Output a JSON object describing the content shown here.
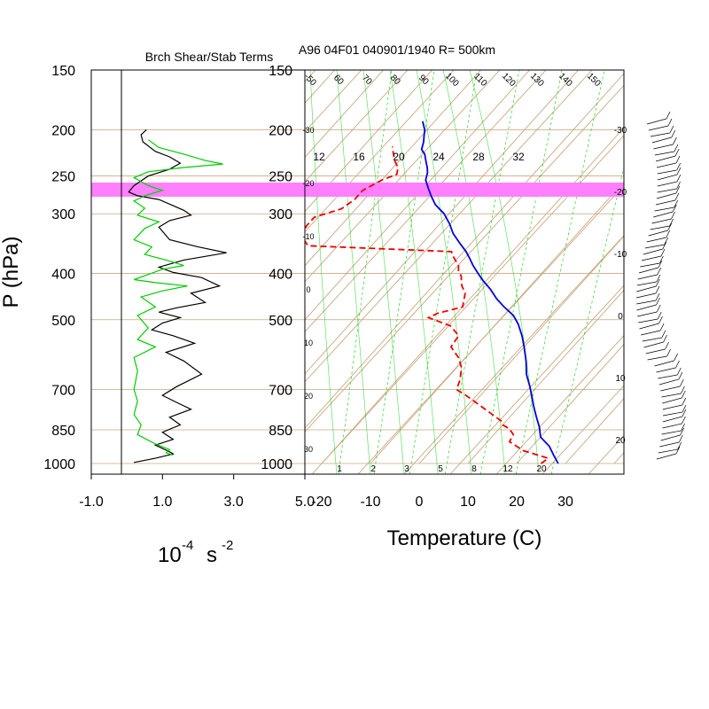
{
  "header": {
    "left_title": "Brch Shear/Stab Terms",
    "right_title": "A96 04F01 040901/1940 R= 500km"
  },
  "axes": {
    "pressure_label": "P (hPa)",
    "temperature_label": "Temperature (C)",
    "units_base": "10",
    "units_exp1": "-4",
    "units_s": "s",
    "units_exp2": "-2"
  },
  "chart_data": [
    {
      "type": "line",
      "name": "shear-stability-profile",
      "xlabel": "10^-4 s^-2",
      "ylabel": "P (hPa)",
      "xlim": [
        -1.0,
        5.0
      ],
      "xticks": [
        "-1.0",
        "1.0",
        "3.0",
        "5.0"
      ],
      "ylim": [
        1000,
        150
      ],
      "yscale": "log",
      "yticks": [
        "150",
        "200",
        "250",
        "300",
        "400",
        "500",
        "700",
        "850",
        "1000"
      ],
      "colors": {
        "black": "#000000",
        "green": "#00cc00",
        "highlight": "#ff80ff"
      },
      "highlight_band": [
        258,
        280
      ],
      "series": [
        {
          "color": "black",
          "points": [
            [
              0.55,
              200
            ],
            [
              0.4,
              205
            ],
            [
              0.45,
              212
            ],
            [
              0.8,
              222
            ],
            [
              1.2,
              228
            ],
            [
              1.5,
              235
            ],
            [
              1.2,
              242
            ],
            [
              0.6,
              250
            ],
            [
              0.2,
              262
            ],
            [
              0.05,
              270
            ],
            [
              0.3,
              275
            ],
            [
              0.9,
              280
            ],
            [
              1.6,
              295
            ],
            [
              1.8,
              302
            ],
            [
              1.2,
              310
            ],
            [
              0.9,
              320
            ],
            [
              1.2,
              340
            ],
            [
              2.0,
              352
            ],
            [
              2.8,
              362
            ],
            [
              1.6,
              375
            ],
            [
              0.9,
              388
            ],
            [
              1.3,
              398
            ],
            [
              2.1,
              408
            ],
            [
              2.6,
              425
            ],
            [
              1.8,
              440
            ],
            [
              2.2,
              460
            ],
            [
              1.4,
              472
            ],
            [
              0.9,
              482
            ],
            [
              1.5,
              495
            ],
            [
              1.0,
              508
            ],
            [
              0.7,
              525
            ],
            [
              1.3,
              540
            ],
            [
              1.9,
              560
            ],
            [
              1.1,
              585
            ],
            [
              1.6,
              610
            ],
            [
              2.1,
              650
            ],
            [
              1.4,
              690
            ],
            [
              1.0,
              720
            ],
            [
              1.4,
              745
            ],
            [
              1.8,
              770
            ],
            [
              1.2,
              800
            ],
            [
              1.5,
              830
            ],
            [
              1.0,
              860
            ],
            [
              1.3,
              890
            ],
            [
              0.8,
              915
            ],
            [
              1.2,
              945
            ],
            [
              1.3,
              955
            ],
            [
              0.8,
              975
            ],
            [
              0.2,
              995
            ]
          ]
        },
        {
          "color": "green",
          "points": [
            [
              0.6,
              210
            ],
            [
              0.9,
              218
            ],
            [
              1.6,
              225
            ],
            [
              2.2,
              232
            ],
            [
              2.7,
              236
            ],
            [
              1.6,
              240
            ],
            [
              0.6,
              245
            ],
            [
              0.2,
              252
            ],
            [
              0.6,
              262
            ],
            [
              1.0,
              268
            ],
            [
              0.5,
              275
            ],
            [
              0.2,
              282
            ],
            [
              0.5,
              292
            ],
            [
              0.3,
              302
            ],
            [
              0.9,
              312
            ],
            [
              0.5,
              322
            ],
            [
              0.2,
              340
            ],
            [
              0.7,
              352
            ],
            [
              0.5,
              365
            ],
            [
              1.1,
              375
            ],
            [
              1.6,
              385
            ],
            [
              1.0,
              392
            ],
            [
              0.6,
              402
            ],
            [
              0.2,
              412
            ],
            [
              0.8,
              418
            ],
            [
              1.7,
              425
            ],
            [
              1.0,
              435
            ],
            [
              0.4,
              448
            ],
            [
              0.8,
              470
            ],
            [
              0.3,
              490
            ],
            [
              0.6,
              520
            ],
            [
              0.3,
              550
            ],
            [
              0.8,
              570
            ],
            [
              0.2,
              600
            ],
            [
              0.3,
              640
            ],
            [
              0.2,
              700
            ],
            [
              0.3,
              740
            ],
            [
              0.2,
              790
            ],
            [
              0.4,
              830
            ],
            [
              0.3,
              870
            ],
            [
              0.8,
              910
            ],
            [
              1.2,
              935
            ],
            [
              1.1,
              950
            ],
            [
              1.3,
              960
            ]
          ]
        }
      ]
    },
    {
      "type": "line",
      "name": "skew-t-sounding",
      "title": "A96 04F01 040901/1940 R= 500km",
      "xlabel": "Temperature (C)",
      "xlim": [
        -20,
        30
      ],
      "xticks": [
        "-20",
        "-10",
        "0",
        "10",
        "20",
        "30"
      ],
      "yscale": "log",
      "ylim": [
        1000,
        150
      ],
      "yticks": [
        "150",
        "200",
        "250",
        "300",
        "400",
        "500",
        "700",
        "850",
        "1000"
      ],
      "colors": {
        "temperature": "#0000dd",
        "dewpoint": "#ee0000",
        "background": "#c8a882",
        "mixing_ratio": "#00cc00"
      },
      "mixing_ratio_labels_top": [
        "12",
        "16",
        "20",
        "24",
        "28",
        "32"
      ],
      "mixing_ratio_labels_bottom": [
        "1",
        "2",
        "3",
        "5",
        "8",
        "12",
        "20"
      ],
      "isotherm_labels_top": [
        "-50",
        "60",
        "70",
        "80",
        "90",
        "100",
        "110",
        "120",
        "130",
        "140",
        "150"
      ],
      "adiabat_labels_right": [
        "-30",
        "-20",
        "-10",
        "0",
        "10",
        "20"
      ],
      "adiabat_labels_left": [
        "-30",
        "-20",
        "-10",
        "0",
        "10",
        "20",
        "30"
      ],
      "series": [
        {
          "name": "temperature",
          "points": [
            [
              28.5,
              1000
            ],
            [
              26,
              960
            ],
            [
              23.5,
              920
            ],
            [
              20,
              880
            ],
            [
              18,
              840
            ],
            [
              15.5,
              800
            ],
            [
              13,
              760
            ],
            [
              10.5,
              720
            ],
            [
              8.5,
              690
            ],
            [
              5.5,
              650
            ],
            [
              3,
              610
            ],
            [
              0,
              570
            ],
            [
              -2.5,
              540
            ],
            [
              -5.5,
              510
            ],
            [
              -8,
              490
            ],
            [
              -11.5,
              470
            ],
            [
              -14.5,
              452
            ],
            [
              -17.5,
              432
            ],
            [
              -20.5,
              415
            ],
            [
              -23,
              400
            ],
            [
              -25.5,
              385
            ],
            [
              -27.5,
              372
            ],
            [
              -29.5,
              360
            ],
            [
              -32.5,
              345
            ],
            [
              -35.5,
              330
            ],
            [
              -38,
              315
            ],
            [
              -41,
              300
            ],
            [
              -44.5,
              287
            ],
            [
              -47,
              275
            ],
            [
              -49,
              265
            ],
            [
              -51,
              255
            ],
            [
              -52,
              246
            ],
            [
              -53,
              240
            ],
            [
              -54,
              235
            ],
            [
              -55,
              230
            ],
            [
              -56,
              225
            ],
            [
              -57.5,
              220
            ],
            [
              -58.5,
              212
            ],
            [
              -59.5,
              206
            ],
            [
              -60.5,
              200
            ],
            [
              -61.5,
              196
            ],
            [
              -62.5,
              192
            ]
          ]
        },
        {
          "name": "dewpoint",
          "points": [
            [
              25,
              1000
            ],
            [
              25.5,
              975
            ],
            [
              19,
              940
            ],
            [
              14.5,
              900
            ],
            [
              14,
              870
            ],
            [
              12,
              845
            ],
            [
              10,
              830
            ],
            [
              9,
              815
            ],
            [
              6,
              790
            ],
            [
              1,
              750
            ],
            [
              -3,
              720
            ],
            [
              -6,
              700
            ],
            [
              -7,
              670
            ],
            [
              -9,
              630
            ],
            [
              -11.5,
              600
            ],
            [
              -15,
              570
            ],
            [
              -15.5,
              540
            ],
            [
              -19,
              515
            ],
            [
              -25,
              495
            ],
            [
              -24,
              485
            ],
            [
              -20,
              470
            ],
            [
              -21,
              455
            ],
            [
              -22,
              440
            ],
            [
              -24,
              425
            ],
            [
              -25,
              415
            ],
            [
              -26,
              405
            ],
            [
              -27.5,
              395
            ],
            [
              -28.5,
              385
            ],
            [
              -31,
              370
            ],
            [
              -32.5,
              360
            ],
            [
              -63,
              350
            ],
            [
              -66,
              335
            ],
            [
              -67,
              318
            ],
            [
              -67,
              305
            ],
            [
              -63,
              293
            ],
            [
              -62,
              280
            ],
            [
              -62,
              268
            ],
            [
              -60,
              255
            ],
            [
              -58,
              248
            ],
            [
              -59,
              240
            ],
            [
              -61,
              232
            ],
            [
              -63,
              222
            ],
            [
              -64,
              217
            ]
          ]
        }
      ]
    }
  ]
}
